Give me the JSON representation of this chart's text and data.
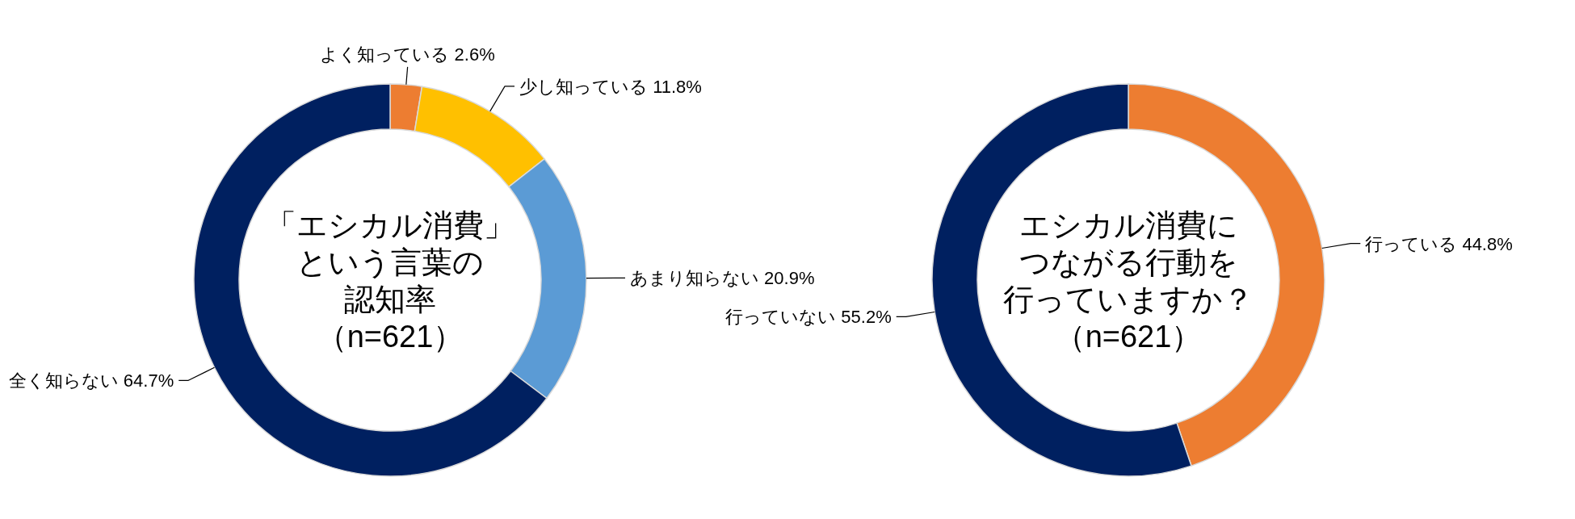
{
  "chart_data": [
    {
      "type": "donut",
      "title": "「エシカル消費」",
      "annotations": [
        "という言葉の",
        "認知率",
        "（n=621）"
      ],
      "categories": [
        "よく知っている",
        "少し知っている",
        "あまり知らない",
        "全く知らない"
      ],
      "values": [
        2.6,
        11.8,
        20.9,
        64.7
      ],
      "value_labels": [
        "2.6%",
        "11.8%",
        "20.9%",
        "64.7%"
      ],
      "colors": [
        "#ed7d31",
        "#ffc000",
        "#5b9bd5",
        "#002060"
      ]
    },
    {
      "type": "donut",
      "title": "エシカル消費に",
      "annotations": [
        "つながる行動を",
        "行っていますか？",
        "（n=621）"
      ],
      "categories": [
        "行っている",
        "行っていない"
      ],
      "values": [
        44.8,
        55.2
      ],
      "value_labels": [
        "44.8%",
        "55.2%"
      ],
      "colors": [
        "#ed7d31",
        "#002060"
      ]
    }
  ]
}
